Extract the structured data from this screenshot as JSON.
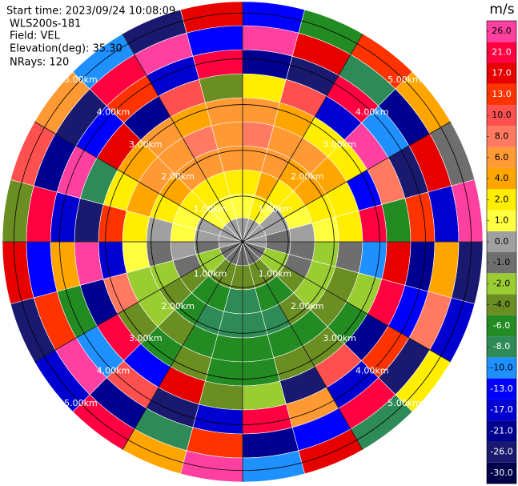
{
  "chart_data": {
    "type": "ppi",
    "info": [
      "Start time: 2023/09/24 10:08:09",
      "WLS200s-181",
      "Field: VEL",
      "Elevation(deg): 35.30",
      "NRays: 120"
    ],
    "range_km": [
      0,
      5.25
    ],
    "rings": [
      {
        "value": 1,
        "label": "1.00km"
      },
      {
        "value": 2,
        "label": "2.00km"
      },
      {
        "value": 3,
        "label": "3.00km"
      },
      {
        "value": 4,
        "label": "4.00km"
      },
      {
        "value": 5,
        "label": "5.00km"
      }
    ],
    "azimuths": [
      7.5,
      22.5,
      37.5,
      52.5,
      67.5,
      82.5,
      97.5,
      112.5,
      127.5,
      142.5,
      157.5,
      172.5,
      187.5,
      202.5,
      217.5,
      232.5,
      247.5,
      262.5,
      277.5,
      292.5,
      307.5,
      322.5,
      337.5,
      352.5
    ],
    "values": [
      [
        0,
        1,
        3,
        6,
        8,
        6,
        2,
        -21,
        26,
        -13
      ],
      [
        0,
        2,
        4,
        6,
        6,
        4,
        10,
        -26,
        17,
        -6
      ],
      [
        0,
        1,
        3,
        4,
        6,
        3,
        -17,
        21,
        -8,
        13
      ],
      [
        0,
        0,
        2,
        4,
        4,
        2,
        26,
        -10,
        -21,
        4
      ],
      [
        0,
        0,
        1,
        2,
        3,
        -13,
        8,
        -26,
        17,
        -1
      ],
      [
        0,
        -1,
        0,
        1,
        2,
        21,
        -6,
        13,
        -17,
        26
      ],
      [
        0,
        -1,
        -1,
        -2,
        -1,
        -10,
        17,
        -21,
        4,
        -26
      ],
      [
        -1,
        -2,
        -1,
        -2,
        -4,
        -2,
        21,
        -13,
        8,
        -17
      ],
      [
        -1,
        -2,
        -4,
        -2,
        -4,
        -6,
        -21,
        13,
        -26,
        2
      ],
      [
        -1,
        -4,
        -6,
        -4,
        -6,
        -4,
        10,
        -17,
        21,
        -8
      ],
      [
        -1,
        -4,
        -6,
        -8,
        -6,
        -4,
        -26,
        6,
        -13,
        17
      ],
      [
        -1,
        -4,
        -8,
        -8,
        -6,
        -6,
        -2,
        21,
        -21,
        -10
      ],
      [
        -1,
        -4,
        -8,
        -8,
        -6,
        -6,
        -4,
        -17,
        13,
        26
      ],
      [
        -1,
        -4,
        -6,
        -8,
        -6,
        -4,
        17,
        -26,
        -8,
        4
      ],
      [
        -1,
        -4,
        -6,
        -6,
        -4,
        -6,
        -13,
        10,
        -21,
        21
      ],
      [
        -1,
        -2,
        -4,
        -4,
        -2,
        -4,
        21,
        -10,
        26,
        -17
      ],
      [
        -1,
        -2,
        -1,
        -2,
        -2,
        8,
        -21,
        -6,
        13,
        -26
      ],
      [
        0,
        -1,
        0,
        -1,
        1,
        -17,
        26,
        4,
        -13,
        17
      ],
      [
        0,
        0,
        1,
        0,
        2,
        13,
        -26,
        -17,
        21,
        -4
      ],
      [
        0,
        0,
        1,
        2,
        4,
        2,
        -8,
        26,
        -21,
        10
      ],
      [
        0,
        1,
        2,
        4,
        6,
        4,
        17,
        -13,
        -26,
        6
      ],
      [
        0,
        1,
        3,
        6,
        6,
        6,
        -21,
        13,
        21,
        -10
      ],
      [
        0,
        1,
        3,
        6,
        8,
        4,
        10,
        -17,
        26,
        -26
      ],
      [
        0,
        1,
        3,
        6,
        6,
        6,
        -4,
        21,
        -13,
        17
      ]
    ],
    "colorbar_label": "m/s",
    "clim": [
      -30,
      30
    ],
    "cticks": [
      {
        "value": -30,
        "label": "-30.0"
      },
      {
        "value": -26,
        "label": "-26.0"
      },
      {
        "value": -21,
        "label": "-21.0"
      },
      {
        "value": -17,
        "label": "-17.0"
      },
      {
        "value": -13,
        "label": "-13.0"
      },
      {
        "value": -10,
        "label": "-10.0"
      },
      {
        "value": -8,
        "label": "-8.0"
      },
      {
        "value": -6,
        "label": "-6.0"
      },
      {
        "value": -4,
        "label": "-4.0"
      },
      {
        "value": -2,
        "label": "-2.0"
      },
      {
        "value": -1,
        "label": "-1.0"
      },
      {
        "value": 0,
        "label": "0.0"
      },
      {
        "value": 1,
        "label": "1.0"
      },
      {
        "value": 2,
        "label": "2.0"
      },
      {
        "value": 4,
        "label": "4.0"
      },
      {
        "value": 6,
        "label": "6.0"
      },
      {
        "value": 8,
        "label": "8.0"
      },
      {
        "value": 10,
        "label": "10.0"
      },
      {
        "value": 13,
        "label": "13.0"
      },
      {
        "value": 17,
        "label": "17.0"
      },
      {
        "value": 21,
        "label": "21.0"
      },
      {
        "value": 26,
        "label": "26.0"
      }
    ],
    "colors": [
      "#00004a",
      "#191970",
      "#000090",
      "#0000d0",
      "#0000ff",
      "#1e90ff",
      "#2e8b57",
      "#228b22",
      "#6b8e23",
      "#9acd32",
      "#6e6e6e",
      "#a0a0a0",
      "#ffff40",
      "#ffee00",
      "#ffa500",
      "#ff9933",
      "#ff7a60",
      "#ff5050",
      "#ff3300",
      "#e60000",
      "#ff0040",
      "#ff40a0"
    ]
  }
}
